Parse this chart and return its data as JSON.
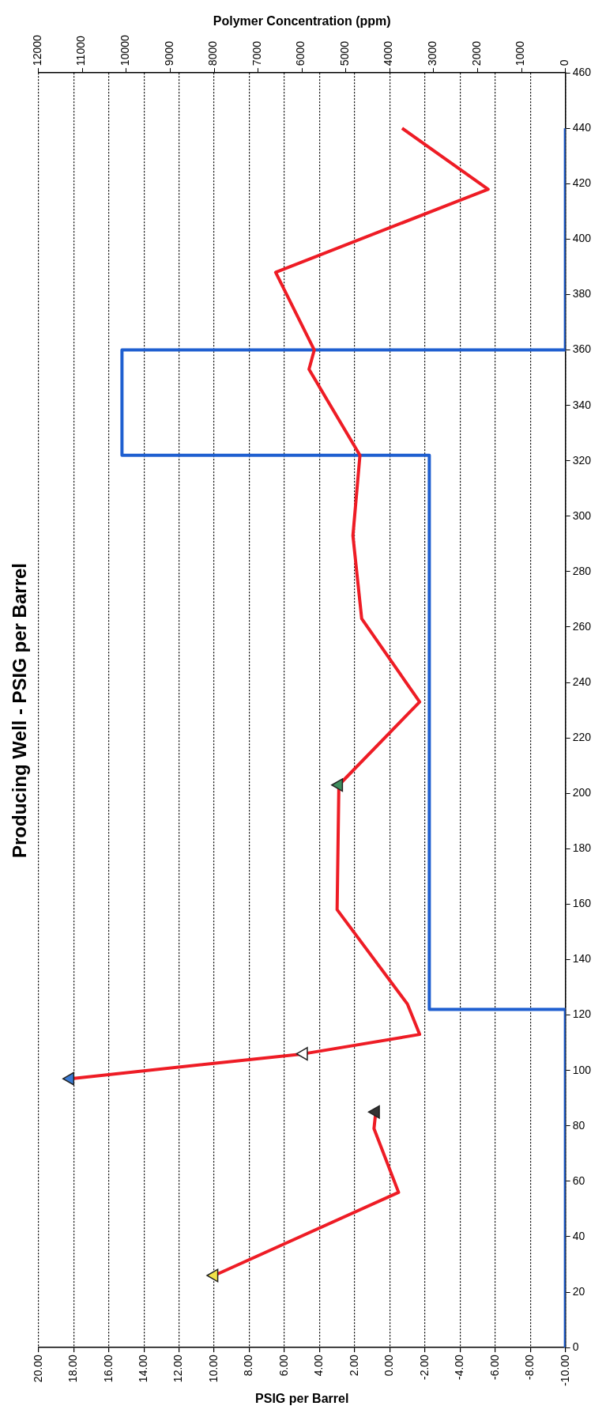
{
  "chart_data": {
    "type": "line",
    "title": "Producing Well - PSIG per Barrel",
    "xlabel": "PSIG per Barrel",
    "x2label": "Polymer Concentration (ppm)",
    "xlim": [
      20,
      -10
    ],
    "xticks": [
      {
        "value": 20,
        "label": "20.00"
      },
      {
        "value": 18,
        "label": "18.00"
      },
      {
        "value": 16,
        "label": "16.00"
      },
      {
        "value": 14,
        "label": "14.00"
      },
      {
        "value": 12,
        "label": "12.00"
      },
      {
        "value": 10,
        "label": "10.00"
      },
      {
        "value": 8,
        "label": "8.00"
      },
      {
        "value": 6,
        "label": "6.00"
      },
      {
        "value": 4,
        "label": "4.00"
      },
      {
        "value": 2,
        "label": "2.00"
      },
      {
        "value": 0,
        "label": "0.00"
      },
      {
        "value": -2,
        "label": "-2.00"
      },
      {
        "value": -4,
        "label": "-4.00"
      },
      {
        "value": -6,
        "label": "-6.00"
      },
      {
        "value": -8,
        "label": "-8.00"
      },
      {
        "value": -10,
        "label": "-10.00"
      }
    ],
    "x2lim": [
      12000,
      0
    ],
    "x2ticks": [
      12000,
      11000,
      10000,
      9000,
      8000,
      7000,
      6000,
      5000,
      4000,
      3000,
      2000,
      1000,
      0
    ],
    "ylim": [
      0,
      460
    ],
    "yticks": [
      0,
      20,
      40,
      60,
      80,
      100,
      120,
      140,
      160,
      180,
      200,
      220,
      240,
      260,
      280,
      300,
      320,
      340,
      360,
      380,
      400,
      420,
      440,
      460
    ],
    "grid": "x",
    "legend": false,
    "series": [
      {
        "type": "line",
        "color": "#ee1c25",
        "marker": "none",
        "x": [
          10,
          -0.5,
          0.9,
          0.8
        ],
        "values": [
          26,
          56,
          79,
          85
        ]
      },
      {
        "type": "line",
        "color": "#ee1c25",
        "marker": "none",
        "x": [
          18.2,
          4.9,
          -1.7,
          -1.0,
          3.0,
          2.9,
          -1.7,
          1.6,
          2.1,
          1.7,
          4.6,
          4.3,
          6.5,
          -5.6,
          -0.7
        ],
        "values": [
          97,
          106,
          113,
          124,
          158,
          203,
          233,
          263,
          293,
          322,
          353,
          360,
          388,
          418,
          440
        ]
      },
      {
        "type": "scatter",
        "marker": "triangle",
        "x": [
          10,
          0.8,
          18.2,
          4.9,
          2.9
        ],
        "values": [
          26,
          85,
          97,
          106,
          203
        ],
        "colors": [
          "#f2e24a",
          "#333333",
          "#3a7bd5",
          "#ffffff",
          "#3e8e5e"
        ]
      },
      {
        "type": "line",
        "axis": "x2",
        "color": "#1f5fd0",
        "marker": "none",
        "x": [
          0,
          0,
          3100,
          3100,
          10100,
          10100,
          0,
          0
        ],
        "values": [
          0,
          122,
          122,
          322,
          322,
          360,
          360,
          440
        ]
      }
    ]
  }
}
